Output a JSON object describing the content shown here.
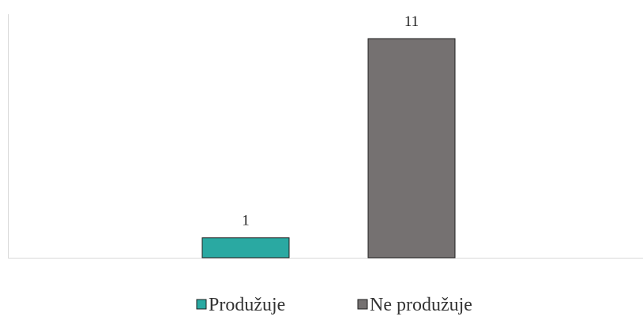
{
  "chart_data": {
    "type": "bar",
    "categories": [
      "Produžuje",
      "Ne produžuje"
    ],
    "values": [
      1,
      11
    ],
    "data_labels": [
      "1",
      "11"
    ],
    "colors": [
      "#2aa9a2",
      "#757171"
    ],
    "edge_color": "#1f1f1f",
    "axis_color": "#d9d9d9",
    "ylim": [
      0,
      11
    ],
    "legend_position": "bottom",
    "grid": false,
    "title": "",
    "xlabel": "",
    "ylabel": ""
  }
}
